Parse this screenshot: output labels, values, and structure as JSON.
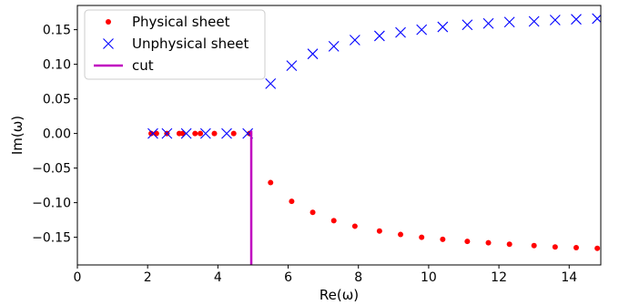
{
  "chart_data": {
    "type": "scatter",
    "xlabel": "Re(ω)",
    "ylabel": "Im(ω)",
    "xlim": [
      0,
      14.9
    ],
    "ylim": [
      -0.19,
      0.185
    ],
    "xticks": [
      0,
      2,
      4,
      6,
      8,
      10,
      12,
      14
    ],
    "yticks": [
      0.15,
      0.1,
      0.05,
      0.0,
      -0.05,
      -0.1,
      -0.15
    ],
    "xtick_labels": [
      "0",
      "2",
      "4",
      "6",
      "8",
      "10",
      "12",
      "14"
    ],
    "ytick_labels": [
      "0.15",
      "0.10",
      "0.05",
      "0.00",
      "−0.05",
      "−0.10",
      "−0.15"
    ],
    "grid": false,
    "legend_position": "top-left",
    "series": [
      {
        "name": "Physical sheet",
        "marker": "dot",
        "color": "#ff0000",
        "points": [
          [
            2.1,
            0.0
          ],
          [
            2.25,
            0.0
          ],
          [
            2.55,
            0.0
          ],
          [
            2.9,
            0.0
          ],
          [
            3.0,
            0.0
          ],
          [
            3.35,
            0.0
          ],
          [
            3.5,
            0.0
          ],
          [
            3.9,
            0.0
          ],
          [
            4.45,
            0.0
          ],
          [
            4.9,
            0.0
          ],
          [
            5.5,
            -0.071
          ],
          [
            6.1,
            -0.098
          ],
          [
            6.7,
            -0.114
          ],
          [
            7.3,
            -0.126
          ],
          [
            7.9,
            -0.134
          ],
          [
            8.6,
            -0.141
          ],
          [
            9.2,
            -0.146
          ],
          [
            9.8,
            -0.15
          ],
          [
            10.4,
            -0.153
          ],
          [
            11.1,
            -0.156
          ],
          [
            11.7,
            -0.158
          ],
          [
            12.3,
            -0.16
          ],
          [
            13.0,
            -0.162
          ],
          [
            13.6,
            -0.164
          ],
          [
            14.2,
            -0.165
          ],
          [
            14.8,
            -0.166
          ]
        ]
      },
      {
        "name": "Unphysical sheet",
        "marker": "x",
        "color": "#0000ff",
        "points": [
          [
            2.15,
            0.0
          ],
          [
            2.55,
            0.0
          ],
          [
            3.1,
            0.0
          ],
          [
            3.65,
            0.0
          ],
          [
            4.25,
            0.0
          ],
          [
            4.85,
            0.0
          ],
          [
            5.5,
            0.072
          ],
          [
            6.1,
            0.098
          ],
          [
            6.7,
            0.115
          ],
          [
            7.3,
            0.126
          ],
          [
            7.9,
            0.135
          ],
          [
            8.6,
            0.141
          ],
          [
            9.2,
            0.146
          ],
          [
            9.8,
            0.15
          ],
          [
            10.4,
            0.154
          ],
          [
            11.1,
            0.157
          ],
          [
            11.7,
            0.159
          ],
          [
            12.3,
            0.161
          ],
          [
            13.0,
            0.162
          ],
          [
            13.6,
            0.164
          ],
          [
            14.2,
            0.165
          ],
          [
            14.8,
            0.166
          ]
        ]
      },
      {
        "name": "cut",
        "marker": "line",
        "color": "#c000c0",
        "points": [
          [
            4.95,
            0.004
          ],
          [
            4.95,
            -0.19
          ]
        ]
      }
    ]
  }
}
